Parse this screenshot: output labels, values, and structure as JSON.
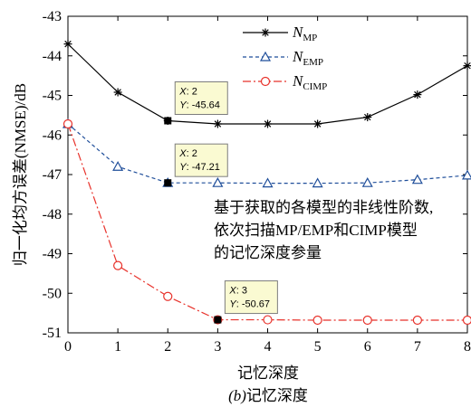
{
  "chart_data": {
    "type": "line",
    "xlabel": "记忆深度",
    "ylabel": "归一化均方误差(NMSE)/dB",
    "caption_prefix": "(b)",
    "caption_text": "记忆深度",
    "xlim": [
      0,
      8
    ],
    "ylim": [
      -51,
      -43
    ],
    "xticks": [
      0,
      1,
      2,
      3,
      4,
      5,
      6,
      7,
      8
    ],
    "yticks": [
      -51,
      -50,
      -49,
      -48,
      -47,
      -46,
      -45,
      -44,
      -43
    ],
    "grid": false,
    "legend_position": "top-right",
    "x": [
      0,
      1,
      2,
      3,
      4,
      5,
      6,
      7,
      8
    ],
    "series": [
      {
        "name_base": "N",
        "name_sub": "MP",
        "color": "#000000",
        "marker": "star",
        "dash": "",
        "values": [
          -43.7,
          -44.92,
          -45.64,
          -45.72,
          -45.72,
          -45.72,
          -45.55,
          -44.98,
          -44.25
        ]
      },
      {
        "name_base": "N",
        "name_sub": "EMP",
        "color": "#1f4e9a",
        "marker": "triangle",
        "dash": "4,3",
        "values": [
          -45.72,
          -46.8,
          -47.21,
          -47.21,
          -47.22,
          -47.22,
          -47.21,
          -47.13,
          -47.02
        ]
      },
      {
        "name_base": "N",
        "name_sub": "CIMP",
        "color": "#e8322b",
        "marker": "circle",
        "dash": "9,3,2,3",
        "values": [
          -45.72,
          -49.3,
          -50.08,
          -50.67,
          -50.67,
          -50.68,
          -50.68,
          -50.68,
          -50.68
        ]
      }
    ],
    "datatips": [
      {
        "x_label": "X",
        "x_value": "2",
        "y_label": "Y",
        "y_value": "-45.64",
        "x": 2,
        "y": -45.64
      },
      {
        "x_label": "X",
        "x_value": "2",
        "y_label": "Y",
        "y_value": "-47.21",
        "x": 2,
        "y": -47.21
      },
      {
        "x_label": "X",
        "x_value": "3",
        "y_label": "Y",
        "y_value": "-50.67",
        "x": 3,
        "y": -50.67
      }
    ],
    "annotation_lines": [
      "基于获取的各模型的非线性阶数,",
      "依次扫描MP/EMP和CIMP模型",
      "的记忆深度参量"
    ]
  }
}
